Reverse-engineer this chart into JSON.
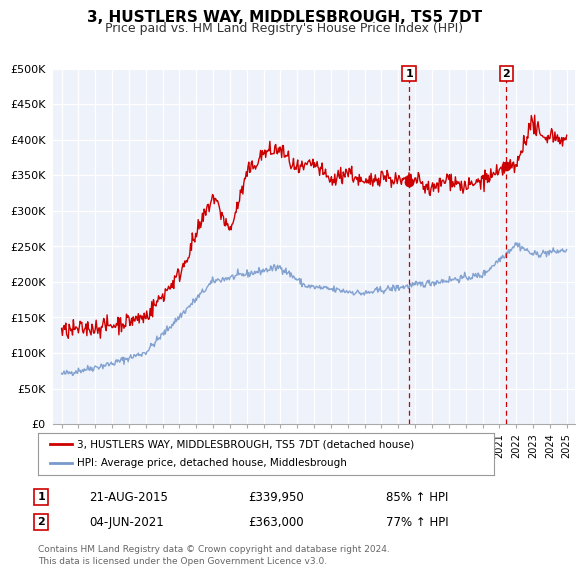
{
  "title": "3, HUSTLERS WAY, MIDDLESBROUGH, TS5 7DT",
  "subtitle": "Price paid vs. HM Land Registry's House Price Index (HPI)",
  "ylabel_ticks": [
    "£0",
    "£50K",
    "£100K",
    "£150K",
    "£200K",
    "£250K",
    "£300K",
    "£350K",
    "£400K",
    "£450K",
    "£500K"
  ],
  "ytick_values": [
    0,
    50000,
    100000,
    150000,
    200000,
    250000,
    300000,
    350000,
    400000,
    450000,
    500000
  ],
  "xlim": [
    1994.5,
    2025.5
  ],
  "ylim": [
    0,
    500000
  ],
  "marker1_x": 2015.64,
  "marker1_y": 339950,
  "marker2_x": 2021.42,
  "marker2_y": 363000,
  "vline1_x": 2015.64,
  "vline2_x": 2021.42,
  "legend_label_red": "3, HUSTLERS WAY, MIDDLESBROUGH, TS5 7DT (detached house)",
  "legend_label_blue": "HPI: Average price, detached house, Middlesbrough",
  "annotation1_date": "21-AUG-2015",
  "annotation1_price": "£339,950",
  "annotation1_pct": "85% ↑ HPI",
  "annotation2_date": "04-JUN-2021",
  "annotation2_price": "£363,000",
  "annotation2_pct": "77% ↑ HPI",
  "footer_line1": "Contains HM Land Registry data © Crown copyright and database right 2024.",
  "footer_line2": "This data is licensed under the Open Government Licence v3.0.",
  "red_color": "#cc0000",
  "blue_color": "#7799cc",
  "bg_color": "#eef2fa",
  "grid_color": "#ffffff",
  "vline_color": "#cc0000",
  "fig_bg": "#ffffff",
  "title_fontsize": 11,
  "subtitle_fontsize": 9,
  "tick_fontsize": 8,
  "legend_fontsize": 8,
  "annot_fontsize": 8.5,
  "footer_fontsize": 6.5
}
